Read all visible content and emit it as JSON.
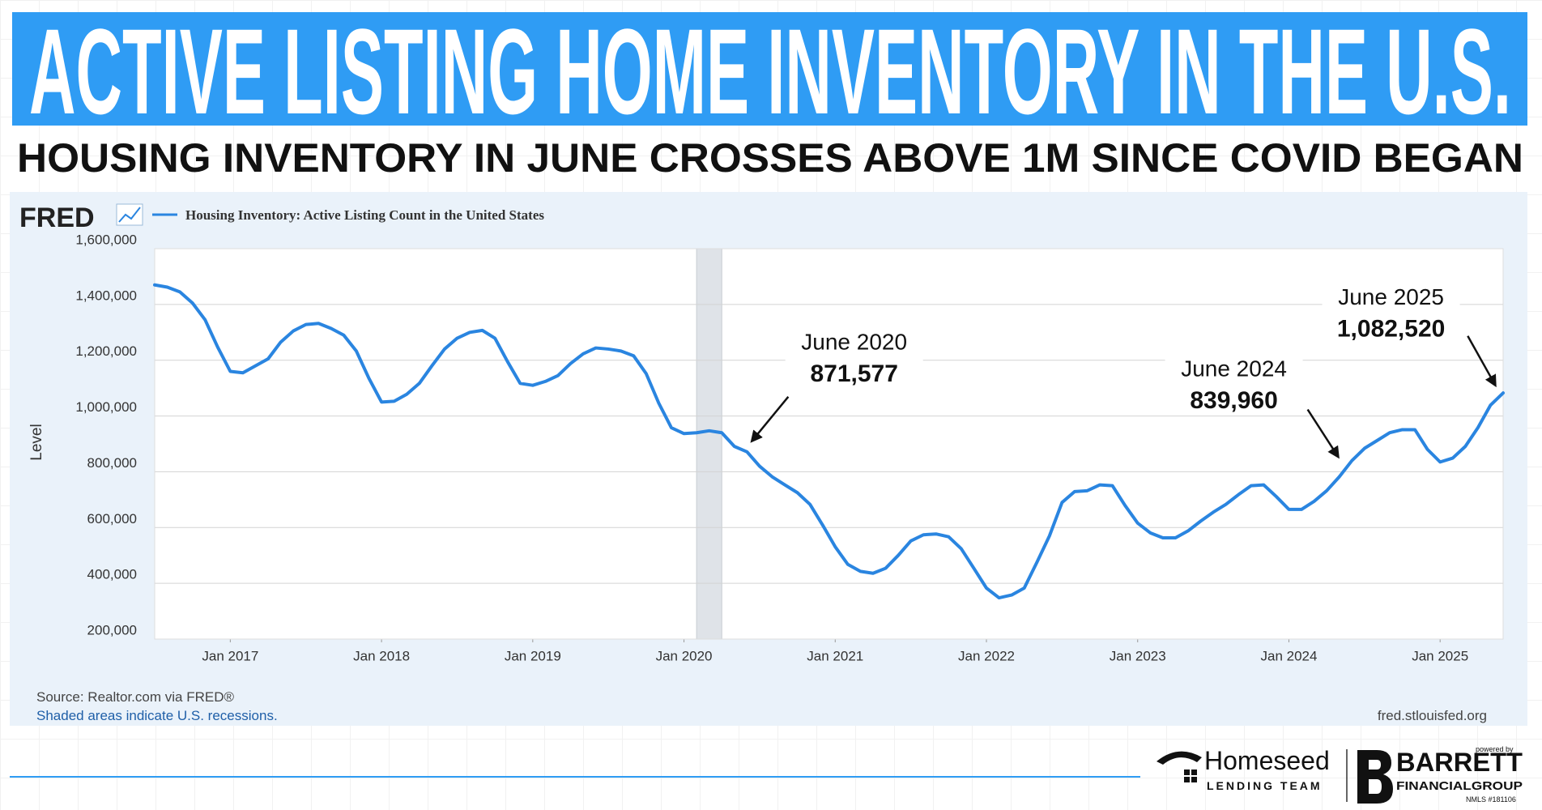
{
  "header": {
    "title": "ACTIVE LISTING HOME INVENTORY IN THE U.S.",
    "subtitle": "HOUSING INVENTORY IN JUNE CROSSES ABOVE 1M SINCE COVID BEGAN"
  },
  "chart_data": {
    "type": "line",
    "logo": "FRED",
    "y_label": "Level",
    "source": "Source: Realtor.com via FRED®",
    "note": "Shaded areas indicate U.S. recessions.",
    "site": "fred.stlouisfed.org",
    "x": [
      "2016-07",
      "2016-08",
      "2016-09",
      "2016-10",
      "2016-11",
      "2016-12",
      "2017-01",
      "2017-02",
      "2017-03",
      "2017-04",
      "2017-05",
      "2017-06",
      "2017-07",
      "2017-08",
      "2017-09",
      "2017-10",
      "2017-11",
      "2017-12",
      "2018-01",
      "2018-02",
      "2018-03",
      "2018-04",
      "2018-05",
      "2018-06",
      "2018-07",
      "2018-08",
      "2018-09",
      "2018-10",
      "2018-11",
      "2018-12",
      "2019-01",
      "2019-02",
      "2019-03",
      "2019-04",
      "2019-05",
      "2019-06",
      "2019-07",
      "2019-08",
      "2019-09",
      "2019-10",
      "2019-11",
      "2019-12",
      "2020-01",
      "2020-02",
      "2020-03",
      "2020-04",
      "2020-05",
      "2020-06",
      "2020-07",
      "2020-08",
      "2020-09",
      "2020-10",
      "2020-11",
      "2020-12",
      "2021-01",
      "2021-02",
      "2021-03",
      "2021-04",
      "2021-05",
      "2021-06",
      "2021-07",
      "2021-08",
      "2021-09",
      "2021-10",
      "2021-11",
      "2021-12",
      "2022-01",
      "2022-02",
      "2022-03",
      "2022-04",
      "2022-05",
      "2022-06",
      "2022-07",
      "2022-08",
      "2022-09",
      "2022-10",
      "2022-11",
      "2022-12",
      "2023-01",
      "2023-02",
      "2023-03",
      "2023-04",
      "2023-05",
      "2023-06",
      "2023-07",
      "2023-08",
      "2023-09",
      "2023-10",
      "2023-11",
      "2023-12",
      "2024-01",
      "2024-02",
      "2024-03",
      "2024-04",
      "2024-05",
      "2024-06",
      "2024-07",
      "2024-08",
      "2024-09",
      "2024-10",
      "2024-11",
      "2024-12",
      "2025-01",
      "2025-02",
      "2025-03",
      "2025-04",
      "2025-05",
      "2025-06"
    ],
    "series": [
      {
        "name": "Housing Inventory: Active Listing Count in the United States",
        "color": "#2a85e0",
        "values": [
          1470000,
          1462000,
          1445000,
          1405000,
          1345000,
          1247000,
          1160000,
          1155000,
          1180000,
          1205000,
          1265000,
          1305000,
          1328000,
          1332000,
          1314000,
          1290000,
          1233000,
          1135000,
          1050000,
          1053000,
          1078000,
          1117000,
          1180000,
          1240000,
          1279000,
          1300000,
          1307000,
          1279000,
          1195000,
          1117000,
          1110000,
          1124000,
          1145000,
          1188000,
          1223000,
          1244000,
          1240000,
          1233000,
          1216000,
          1152000,
          1046000,
          958000,
          937000,
          940000,
          947000,
          940000,
          891000,
          871577,
          820000,
          782000,
          753000,
          725000,
          683000,
          609000,
          531000,
          468000,
          443000,
          436000,
          454000,
          500000,
          552000,
          574000,
          577000,
          567000,
          524000,
          454000,
          383000,
          348000,
          358000,
          383000,
          475000,
          570000,
          690000,
          729000,
          732000,
          753000,
          750000,
          679000,
          616000,
          581000,
          563000,
          563000,
          588000,
          623000,
          655000,
          683000,
          718000,
          750000,
          753000,
          711000,
          665000,
          665000,
          694000,
          732000,
          782000,
          839960,
          884000,
          912000,
          940000,
          951000,
          951000,
          880000,
          835000,
          849000,
          891000,
          958000,
          1039000,
          1082520
        ]
      }
    ],
    "ylim": [
      200000,
      1600000
    ],
    "yticks": [
      {
        "value": 200000,
        "label": "200,000"
      },
      {
        "value": 400000,
        "label": "400,000"
      },
      {
        "value": 600000,
        "label": "600,000"
      },
      {
        "value": 800000,
        "label": "800,000"
      },
      {
        "value": 1000000,
        "label": "1,000,000"
      },
      {
        "value": 1200000,
        "label": "1,200,000"
      },
      {
        "value": 1400000,
        "label": "1,400,000"
      },
      {
        "value": 1600000,
        "label": "1,600,000"
      }
    ],
    "xticks": [
      {
        "value": "2017-01",
        "label": "Jan 2017"
      },
      {
        "value": "2018-01",
        "label": "Jan 2018"
      },
      {
        "value": "2019-01",
        "label": "Jan 2019"
      },
      {
        "value": "2020-01",
        "label": "Jan 2020"
      },
      {
        "value": "2021-01",
        "label": "Jan 2021"
      },
      {
        "value": "2022-01",
        "label": "Jan 2022"
      },
      {
        "value": "2023-01",
        "label": "Jan 2023"
      },
      {
        "value": "2024-01",
        "label": "Jan 2024"
      },
      {
        "value": "2025-01",
        "label": "Jan 2025"
      }
    ],
    "grid": true,
    "recessions": [
      {
        "start": "2020-02",
        "end": "2020-04"
      }
    ],
    "annotations": [
      {
        "label": "June 2020",
        "value": 871577,
        "value_label": "871,577"
      },
      {
        "label": "June 2024",
        "value": 839960,
        "value_label": "839,960"
      },
      {
        "label": "June 2025",
        "value": 1082520,
        "value_label": "1,082,520"
      }
    ]
  },
  "branding": {
    "homeseed": "Homeseed",
    "lending_team": "LENDING TEAM",
    "powered_by": "powered by",
    "barrett": "BARRETT",
    "financial_group": "FINANCIALGROUP",
    "nmls": "NMLS #181106"
  }
}
